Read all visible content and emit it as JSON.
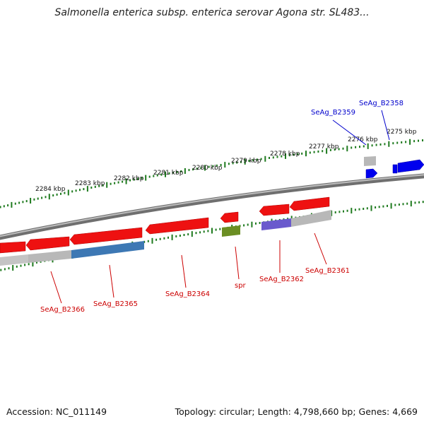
{
  "title": "Salmonella enterica subsp. enterica serovar Agona str. SL483...",
  "footer": {
    "accession": "Accession: NC_011149",
    "summary": "Topology: circular; Length: 4,798,660 bp; Genes: 4,669"
  },
  "scale": {
    "unit": "kbp",
    "labels": [
      "2284 kbp",
      "2283 kbp",
      "2282 kbp",
      "2281 kbp",
      "2280 kbp",
      "2279 kbp",
      "2278 kbp",
      "2277 kbp",
      "2276 kbp",
      "2275 kbp"
    ]
  },
  "genes": {
    "reverse_strand_labels": [
      "SeAg_B2366",
      "SeAg_B2365",
      "SeAg_B2364",
      "spr",
      "SeAg_B2362",
      "SeAg_B2361"
    ],
    "forward_strand_labels": [
      "SeAg_B2359",
      "SeAg_B2358"
    ]
  },
  "colors": {
    "backbone": "#888888",
    "tick": "#1e7a1e",
    "cds_reverse": "#ee1111",
    "cds_forward": "#0000ee",
    "label_reverse": "#cc0000",
    "label_forward": "#0000cc",
    "cog_blue": "#3d78b4",
    "cog_olive": "#6b8e23",
    "cog_purple": "#6a5acd",
    "cog_grey": "#b8b8b8"
  }
}
